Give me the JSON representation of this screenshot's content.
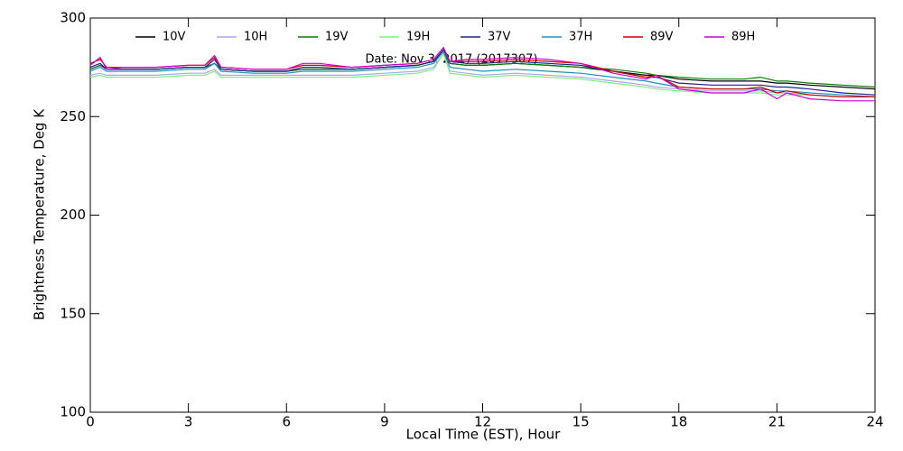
{
  "chart_data": {
    "type": "line",
    "xlabel": "Local Time (EST), Hour",
    "ylabel": "Brightness Temperature, Deg K",
    "annotation": "Date: Nov  3, 2017 (2017307)",
    "xlim": [
      0,
      24
    ],
    "xticks": [
      0,
      3,
      6,
      9,
      12,
      15,
      18,
      21,
      24
    ],
    "ylim": [
      100,
      300
    ],
    "yticks": [
      100,
      150,
      200,
      250,
      300
    ],
    "x": [
      0,
      0.3,
      0.5,
      1,
      2,
      3,
      3.5,
      3.8,
      4,
      5,
      6,
      6.5,
      7,
      8,
      9,
      10,
      10.5,
      10.8,
      11,
      11.5,
      12,
      13,
      14,
      15,
      16,
      17,
      17.3,
      18,
      19,
      20,
      20.5,
      21,
      21.3,
      22,
      23,
      24
    ],
    "series": [
      {
        "name": "10V",
        "color": "#000000",
        "values": [
          274,
          276,
          274,
          274,
          274,
          275,
          275,
          277,
          274,
          273,
          273,
          274,
          274,
          274,
          275,
          276,
          278,
          283,
          277,
          276,
          276,
          277,
          276,
          275,
          273,
          271,
          271,
          269,
          268,
          268,
          268,
          267,
          267,
          266,
          265,
          264
        ]
      },
      {
        "name": "10H",
        "color": "#a8a8f0",
        "values": [
          271,
          272,
          271,
          271,
          271,
          272,
          272,
          274,
          271,
          271,
          271,
          271,
          271,
          271,
          272,
          273,
          275,
          282,
          273,
          272,
          271,
          272,
          271,
          270,
          268,
          266,
          265,
          264,
          263,
          263,
          263,
          262,
          262,
          261,
          260,
          260
        ]
      },
      {
        "name": "19V",
        "color": "#008000",
        "values": [
          274,
          276,
          274,
          274,
          274,
          275,
          275,
          277,
          274,
          273,
          273,
          274,
          274,
          274,
          275,
          276,
          278,
          283,
          277,
          276,
          276,
          277,
          276,
          275,
          274,
          272,
          271,
          270,
          269,
          269,
          270,
          268,
          268,
          267,
          266,
          265
        ]
      },
      {
        "name": "19H",
        "color": "#80f080",
        "values": [
          270,
          271,
          270,
          270,
          270,
          271,
          271,
          273,
          270,
          270,
          270,
          270,
          270,
          270,
          271,
          272,
          274,
          282,
          272,
          271,
          270,
          271,
          270,
          269,
          267,
          265,
          264,
          263,
          262,
          262,
          262,
          261,
          261,
          261,
          260,
          260
        ]
      },
      {
        "name": "37V",
        "color": "#202090",
        "values": [
          275,
          277,
          274,
          274,
          274,
          275,
          275,
          279,
          274,
          273,
          273,
          275,
          275,
          274,
          275,
          276,
          278,
          284,
          278,
          277,
          277,
          278,
          277,
          276,
          273,
          270,
          270,
          267,
          266,
          266,
          266,
          265,
          265,
          264,
          262,
          261
        ]
      },
      {
        "name": "37H",
        "color": "#2090c0",
        "values": [
          273,
          275,
          273,
          273,
          273,
          274,
          274,
          277,
          273,
          272,
          272,
          273,
          273,
          273,
          274,
          275,
          277,
          283,
          275,
          274,
          273,
          274,
          273,
          272,
          270,
          268,
          267,
          265,
          264,
          264,
          264,
          263,
          263,
          262,
          261,
          260
        ]
      },
      {
        "name": "89V",
        "color": "#d00000",
        "values": [
          277,
          279,
          275,
          275,
          275,
          276,
          276,
          280,
          275,
          274,
          274,
          276,
          276,
          275,
          276,
          277,
          279,
          285,
          278,
          278,
          278,
          279,
          278,
          277,
          273,
          270,
          271,
          265,
          264,
          264,
          265,
          262,
          263,
          261,
          260,
          260
        ]
      },
      {
        "name": "89H",
        "color": "#d000d0",
        "values": [
          276,
          280,
          274,
          275,
          275,
          276,
          276,
          281,
          275,
          274,
          274,
          277,
          277,
          275,
          276,
          277,
          279,
          285,
          278,
          279,
          279,
          280,
          279,
          277,
          272,
          269,
          271,
          264,
          262,
          262,
          264,
          259,
          262,
          259,
          258,
          258
        ]
      }
    ]
  }
}
